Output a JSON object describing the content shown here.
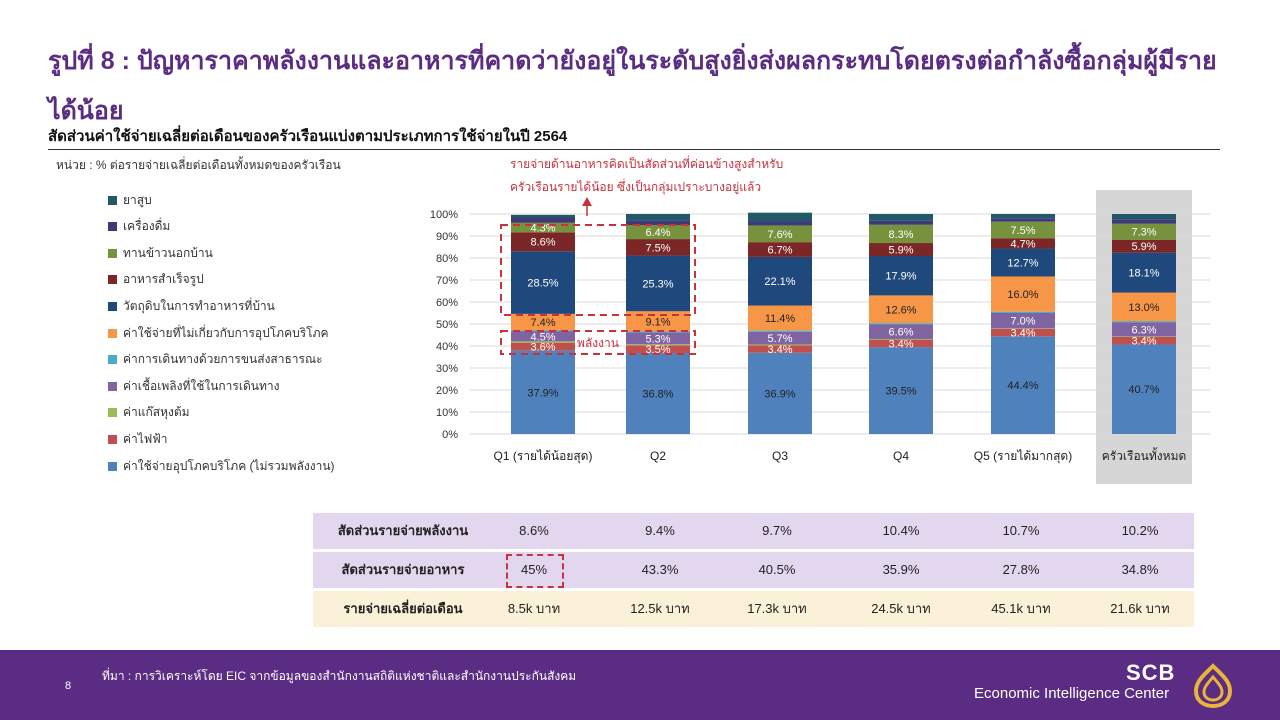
{
  "title": "รูปที่ 8 : ปัญหาราคาพลังงานและอาหารที่คาดว่ายังอยู่ในระดับสูงยิ่งส่งผลกระทบโดยตรงต่อกำลังซื้อกลุ่มผู้มีรายได้น้อย",
  "subtitle": "สัดส่วนค่าใช้จ่ายเฉลี่ยต่อเดือนของครัวเรือนแบ่งตามประเภทการใช้จ่ายในปี 2564",
  "unit_note": "หน่วย : % ต่อรายจ่ายเฉลี่ยต่อเดือนทั้งหมดของครัวเรือน",
  "colors": {
    "brand_purple": "#5b2c83",
    "highlight_red": "#c8323c",
    "row_purple": "#e3d7f0",
    "row_yellow": "#fbf1d8",
    "total_column_bg": "#d6d6d6"
  },
  "chart_data": {
    "type": "bar",
    "stacked": true,
    "categories": [
      "Q1 (รายได้น้อยสุด)",
      "Q2",
      "Q3",
      "Q4",
      "Q5 (รายได้มากสุด)",
      "ครัวเรือนทั้งหมด"
    ],
    "y_ticks": [
      "0%",
      "10%",
      "20%",
      "30%",
      "40%",
      "50%",
      "60%",
      "70%",
      "80%",
      "90%",
      "100%"
    ],
    "ylim": [
      0,
      100
    ],
    "legend_position": "left",
    "grid": true,
    "series": [
      {
        "name": "ค่าใช้จ่ายอุปโภคบริโภค (ไม่รวมพลังงาน)",
        "color": "#4f81bd",
        "values": [
          37.9,
          36.8,
          36.9,
          39.5,
          44.4,
          40.7
        ],
        "labels": [
          "37.9%",
          "36.8%",
          "36.9%",
          "39.5%",
          "44.4%",
          "40.7%"
        ]
      },
      {
        "name": "ค่าไฟฟ้า",
        "color": "#c0504d",
        "values": [
          3.6,
          3.5,
          3.4,
          3.4,
          3.4,
          3.4
        ],
        "labels": [
          "3.6%",
          "3.5%",
          "3.4%",
          "3.4%",
          "3.4%",
          "3.4%"
        ]
      },
      {
        "name": "ค่าแก๊สหุงต้ม",
        "color": "#9bbb59",
        "values": [
          0.6,
          0.5,
          0.4,
          0.3,
          0.2,
          0.3
        ],
        "labels": [
          "",
          "",
          "",
          "",
          "",
          ""
        ]
      },
      {
        "name": "ค่าเชื้อเพลิงที่ใช้ในการเดินทาง",
        "color": "#8064a2",
        "values": [
          4.5,
          5.3,
          5.7,
          6.6,
          7.0,
          6.3
        ],
        "labels": [
          "4.5%",
          "5.3%",
          "5.7%",
          "6.6%",
          "7.0%",
          "6.3%"
        ]
      },
      {
        "name": "ค่าการเดินทางด้วยการขนส่งสาธารณะ",
        "color": "#4bacc6",
        "values": [
          0.6,
          0.6,
          0.6,
          0.6,
          0.6,
          0.6
        ],
        "labels": [
          "",
          "",
          "",
          "",
          "",
          ""
        ]
      },
      {
        "name": "ค่าใช้จ่ายที่ไม่เกี่ยวกับการอุปโภคบริโภค",
        "color": "#f79646",
        "values": [
          7.4,
          9.1,
          11.4,
          12.6,
          16.0,
          13.0
        ],
        "labels": [
          "7.4%",
          "9.1%",
          "11.4%",
          "12.6%",
          "16.0%",
          "13.0%"
        ]
      },
      {
        "name": "วัตถุดิบในการทำอาหารที่บ้าน",
        "color": "#1f497d",
        "values": [
          28.5,
          25.3,
          22.1,
          17.9,
          12.7,
          18.1
        ],
        "labels": [
          "28.5%",
          "25.3%",
          "22.1%",
          "17.9%",
          "12.7%",
          "18.1%"
        ]
      },
      {
        "name": "อาหารสำเร็จรูป",
        "color": "#7b2727",
        "values": [
          8.6,
          7.5,
          6.7,
          5.9,
          4.7,
          5.9
        ],
        "labels": [
          "8.6%",
          "7.5%",
          "6.7%",
          "5.9%",
          "4.7%",
          "5.9%"
        ]
      },
      {
        "name": "ทานข้าวนอกบ้าน",
        "color": "#76923c",
        "values": [
          4.3,
          6.4,
          7.6,
          8.3,
          7.5,
          7.3
        ],
        "labels": [
          "4.3%",
          "6.4%",
          "7.6%",
          "8.3%",
          "7.5%",
          "7.3%"
        ]
      },
      {
        "name": "เครื่องดื่ม",
        "color": "#3d3a78",
        "values": [
          2.4,
          2.2,
          2.0,
          1.8,
          1.6,
          2.0
        ],
        "labels": [
          "",
          "",
          "",
          "",
          "",
          ""
        ]
      },
      {
        "name": "ยาสูบ",
        "color": "#215968",
        "values": [
          1.2,
          2.8,
          3.8,
          3.1,
          1.9,
          2.4
        ],
        "labels": [
          "",
          "",
          "",
          "",
          "",
          ""
        ]
      }
    ],
    "annotations": [
      {
        "text": "รายจ่ายด้านอาหารคิดเป็นสัดส่วนที่ค่อนข้างสูงสำหรับ"
      },
      {
        "text": "ครัวเรือนรายได้น้อย ซึ่งเป็นกลุ่มเปราะบางอยู่แล้ว"
      },
      {
        "text": "พลังงาน"
      }
    ]
  },
  "legend_order": [
    "ยาสูบ",
    "เครื่องดื่ม",
    "ทานข้าวนอกบ้าน",
    "อาหารสำเร็จรูป",
    "วัตถุดิบในการทำอาหารที่บ้าน",
    "ค่าใช้จ่ายที่ไม่เกี่ยวกับการอุปโภคบริโภค",
    "ค่าการเดินทางด้วยการขนส่งสาธารณะ",
    "ค่าเชื้อเพลิงที่ใช้ในการเดินทาง",
    "ค่าแก๊สหุงต้ม",
    "ค่าไฟฟ้า",
    "ค่าใช้จ่ายอุปโภคบริโภค (ไม่รวมพลังงาน)"
  ],
  "table": {
    "rows": [
      {
        "label": "สัดส่วนรายจ่ายพลังงาน",
        "values": [
          "8.6%",
          "9.4%",
          "9.7%",
          "10.4%",
          "10.7%",
          "10.2%"
        ]
      },
      {
        "label": "สัดส่วนรายจ่ายอาหาร",
        "values": [
          "45%",
          "43.3%",
          "40.5%",
          "35.9%",
          "27.8%",
          "34.8%"
        ]
      },
      {
        "label": "รายจ่ายเฉลี่ยต่อเดือน",
        "values": [
          "8.5k บาท",
          "12.5k บาท",
          "17.3k บาท",
          "24.5k บาท",
          "45.1k บาท",
          "21.6k บาท"
        ]
      }
    ]
  },
  "footer": {
    "page_number": "8",
    "source": "ที่มา : การวิเคราะห์โดย EIC จากข้อมูลของสำนักงานสถิติแห่งชาติและสำนักงานประกันสังคม",
    "brand_short": "SCB",
    "brand_long": "Economic Intelligence Center"
  }
}
